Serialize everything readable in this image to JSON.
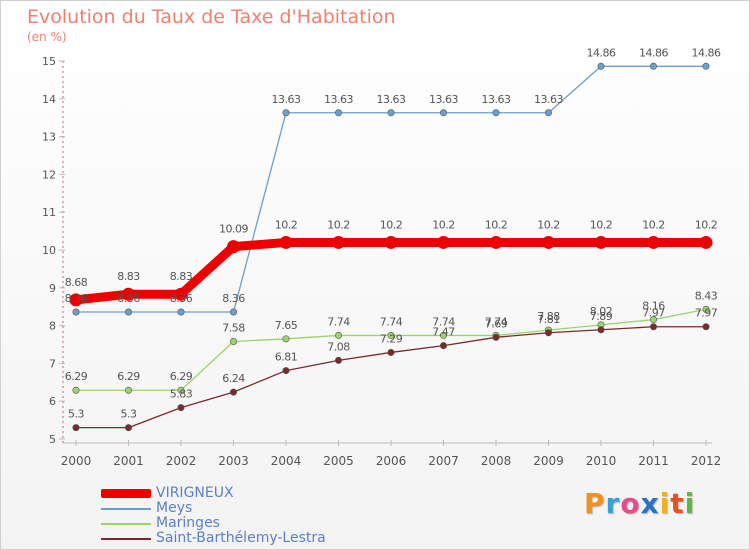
{
  "title": "Evolution du Taux de Taxe d'Habitation",
  "subtitle": "(en %)",
  "colors": {
    "title": "#f08070",
    "legend_text": "#5b7fc8",
    "axis_text": "#555555",
    "label_text": "#555555"
  },
  "chart_data": {
    "type": "line",
    "title": "Evolution du Taux de Taxe d'Habitation",
    "ylabel": "(en %)",
    "xlabel": "",
    "x": [
      2000,
      2001,
      2002,
      2003,
      2004,
      2005,
      2006,
      2007,
      2008,
      2009,
      2010,
      2011,
      2012
    ],
    "ylim": [
      5,
      15
    ],
    "yticks": [
      5,
      6,
      7,
      8,
      9,
      10,
      11,
      12,
      13,
      14,
      15
    ],
    "grid": false,
    "legend_position": "bottom-left",
    "series": [
      {
        "name": "VIRIGNEUX",
        "color": "#ee0000",
        "emphasis": true,
        "values": [
          8.68,
          8.83,
          8.83,
          10.09,
          10.2,
          10.2,
          10.2,
          10.2,
          10.2,
          10.2,
          10.2,
          10.2,
          10.2
        ],
        "labels": [
          "8.68",
          "8.83",
          "8.83",
          "10.09",
          "10.2",
          "10.2",
          "10.2",
          "10.2",
          "10.2",
          "10.2",
          "10.2",
          "10.2",
          "10.2"
        ]
      },
      {
        "name": "Meys",
        "color": "#6a9fd0",
        "emphasis": false,
        "values": [
          8.36,
          8.36,
          8.36,
          8.36,
          13.63,
          13.63,
          13.63,
          13.63,
          13.63,
          13.63,
          14.86,
          14.86,
          14.86
        ],
        "labels": [
          "8.36",
          "8.36",
          "8.36",
          "8.36",
          "13.63",
          "13.63",
          "13.63",
          "13.63",
          "13.63",
          "13.63",
          "14.86",
          "14.86",
          "14.86"
        ]
      },
      {
        "name": "Maringes",
        "color": "#9ad46a",
        "emphasis": false,
        "values": [
          6.29,
          6.29,
          6.29,
          7.58,
          7.65,
          7.74,
          7.74,
          7.74,
          7.74,
          7.88,
          8.02,
          8.16,
          8.43
        ],
        "labels": [
          "6.29",
          "6.29",
          "6.29",
          "7.58",
          "7.65",
          "7.74",
          "7.74",
          "7.74",
          "7.74",
          "7.88",
          "8.02",
          "8.16",
          "8.43"
        ]
      },
      {
        "name": "Saint-Barthélemy-Lestra",
        "color": "#7a2a2a",
        "emphasis": false,
        "values": [
          5.3,
          5.3,
          5.83,
          6.24,
          6.81,
          7.08,
          7.29,
          7.47,
          7.69,
          7.81,
          7.89,
          7.97,
          7.97
        ],
        "labels": [
          "5.3",
          "5.3",
          "5.83",
          "6.24",
          "6.81",
          "7.08",
          "7.29",
          "7.47",
          "7.69",
          "7.81",
          "7.89",
          "7.97",
          "7.97"
        ]
      }
    ]
  },
  "logo": {
    "letters": [
      "P",
      "r",
      "o",
      "x",
      "i",
      "t",
      "i"
    ],
    "colors": [
      "#f09020",
      "#3aa0d8",
      "#e84a8a",
      "#2a70c8",
      "#f0b020",
      "#e85020",
      "#60b840"
    ]
  }
}
